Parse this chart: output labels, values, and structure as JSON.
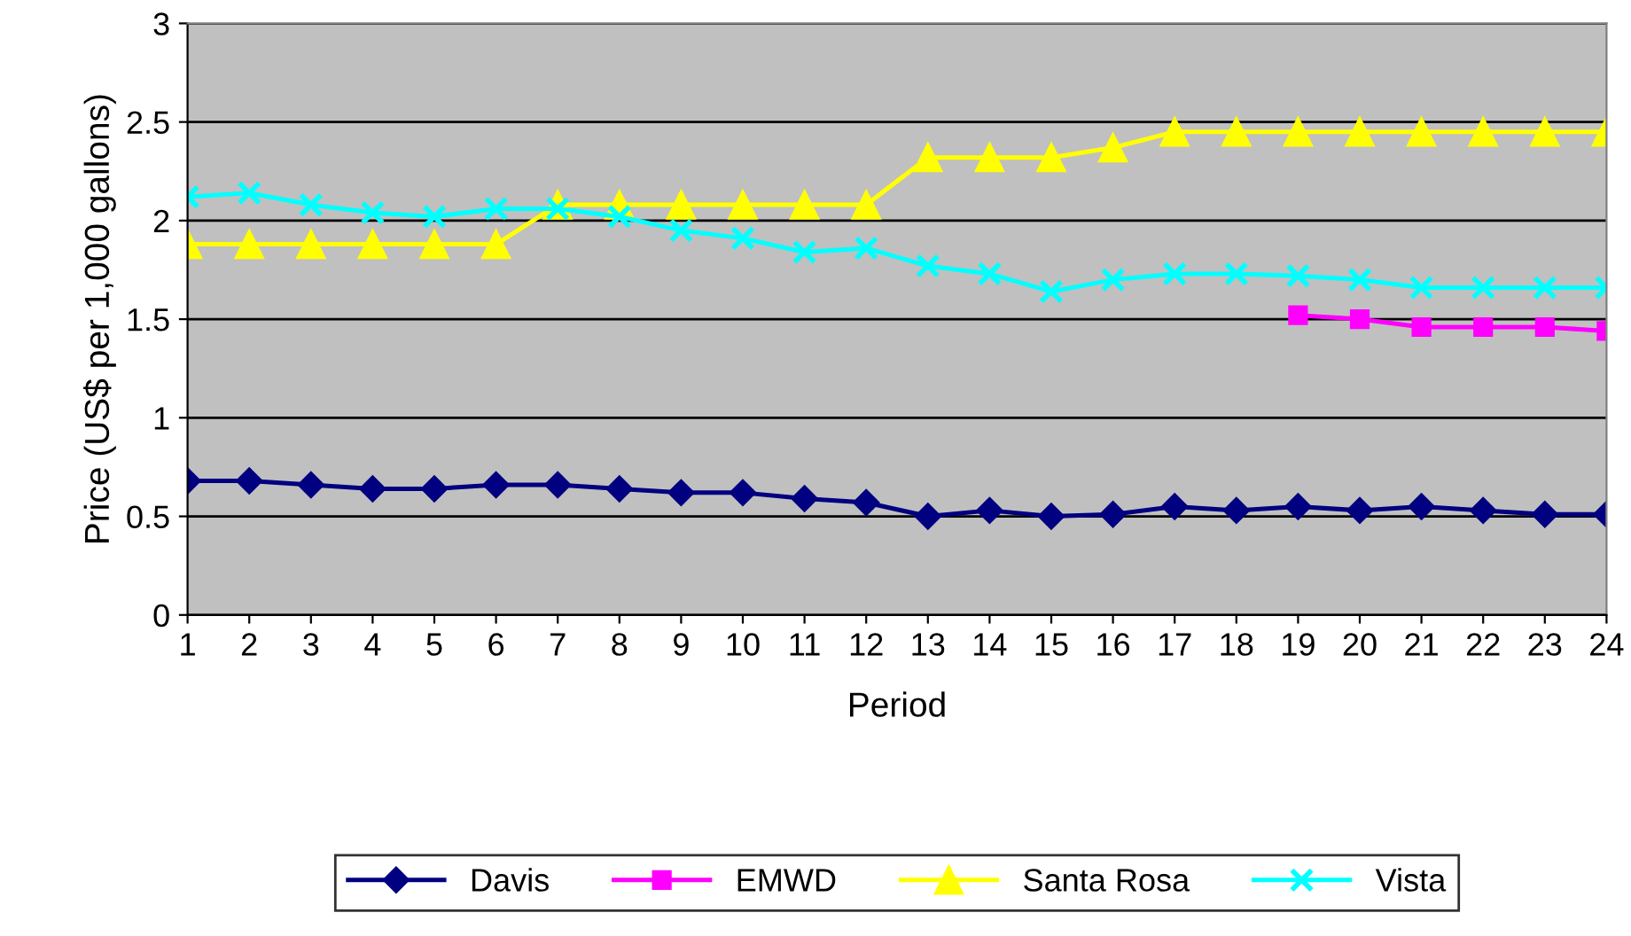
{
  "chart_data": {
    "type": "line",
    "xlabel": "Period",
    "ylabel": "Price (US$ per 1,000 gallons)",
    "categories": [
      "1",
      "2",
      "3",
      "4",
      "5",
      "6",
      "7",
      "8",
      "9",
      "10",
      "11",
      "12",
      "13",
      "14",
      "15",
      "16",
      "17",
      "18",
      "19",
      "20",
      "21",
      "22",
      "23",
      "24"
    ],
    "series": [
      {
        "name": "Davis",
        "color": "#000080",
        "marker": "diamond",
        "values": [
          0.68,
          0.68,
          0.66,
          0.64,
          0.64,
          0.66,
          0.66,
          0.64,
          0.62,
          0.62,
          0.59,
          0.57,
          0.5,
          0.53,
          0.5,
          0.51,
          0.55,
          0.53,
          0.55,
          0.53,
          0.55,
          0.53,
          0.51,
          0.51
        ]
      },
      {
        "name": "EMWD",
        "color": "#ff00ff",
        "marker": "square",
        "values": [
          null,
          null,
          null,
          null,
          null,
          null,
          null,
          null,
          null,
          null,
          null,
          null,
          null,
          null,
          null,
          null,
          null,
          null,
          1.52,
          1.5,
          1.46,
          1.46,
          1.46,
          1.44
        ]
      },
      {
        "name": "Santa Rosa",
        "color": "#ffff00",
        "marker": "triangle",
        "values": [
          1.88,
          1.88,
          1.88,
          1.88,
          1.88,
          1.88,
          2.08,
          2.08,
          2.08,
          2.08,
          2.08,
          2.08,
          2.32,
          2.32,
          2.32,
          2.37,
          2.45,
          2.45,
          2.45,
          2.45,
          2.45,
          2.45,
          2.45,
          2.45
        ]
      },
      {
        "name": "Vista",
        "color": "#00ffff",
        "marker": "cross",
        "values": [
          2.12,
          2.14,
          2.08,
          2.04,
          2.02,
          2.06,
          2.06,
          2.02,
          1.95,
          1.91,
          1.84,
          1.86,
          1.77,
          1.73,
          1.64,
          1.7,
          1.73,
          1.73,
          1.72,
          1.7,
          1.66,
          1.66,
          1.66,
          1.66
        ]
      }
    ],
    "ylim": [
      0,
      3
    ],
    "yticks": [
      0,
      0.5,
      1,
      1.5,
      2,
      2.5,
      3
    ],
    "grid": "y",
    "legend": "bottom",
    "line_style": "solid"
  }
}
